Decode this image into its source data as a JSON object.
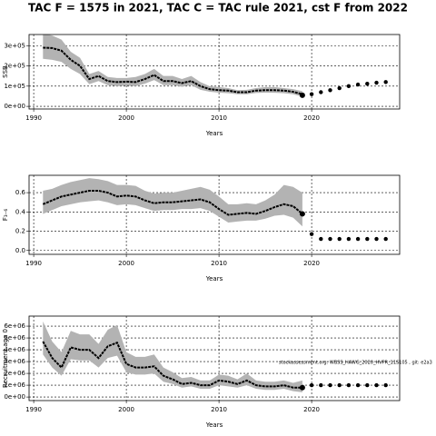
{
  "title": "TAC F = 1575 in 2021, TAC C = TAC rule 2021, cst F from 2022",
  "chart_data": [
    {
      "type": "line",
      "xlabel": "Years",
      "ylabel": "SSB",
      "grid": true,
      "line_color": "#000000",
      "band_color": "#b3b3b3",
      "point_color": "#000000",
      "xlim": [
        1989.5,
        2029.5
      ],
      "xticks": [
        1990,
        2000,
        2010,
        2020
      ],
      "ylim": [
        -13000,
        355000
      ],
      "yticks": [
        {
          "value": 0,
          "label": "0e+00"
        },
        {
          "value": 100000,
          "label": "1e+05"
        },
        {
          "value": 200000,
          "label": "2e+05"
        },
        {
          "value": 300000,
          "label": "3e+05"
        }
      ],
      "x": [
        1991,
        1992,
        1993,
        1994,
        1995,
        1996,
        1997,
        1998,
        1999,
        2000,
        2001,
        2002,
        2003,
        2004,
        2005,
        2006,
        2007,
        2008,
        2009,
        2010,
        2011,
        2012,
        2013,
        2014,
        2015,
        2016,
        2017,
        2018,
        2019
      ],
      "values": [
        290000,
        288000,
        275000,
        230000,
        200000,
        135000,
        150000,
        125000,
        120000,
        122000,
        120000,
        135000,
        155000,
        125000,
        125000,
        115000,
        125000,
        100000,
        85000,
        80000,
        78000,
        70000,
        70000,
        78000,
        80000,
        80000,
        78000,
        72000,
        60000
      ],
      "upper": [
        360000,
        350000,
        330000,
        270000,
        240000,
        160000,
        175000,
        145000,
        140000,
        140000,
        145000,
        160000,
        185000,
        150000,
        150000,
        135000,
        150000,
        120000,
        100000,
        95000,
        90000,
        80000,
        82000,
        90000,
        95000,
        95000,
        90000,
        85000,
        75000
      ],
      "lower": [
        235000,
        230000,
        220000,
        185000,
        160000,
        110000,
        125000,
        105000,
        100000,
        102000,
        100000,
        112000,
        130000,
        105000,
        105000,
        97000,
        105000,
        82000,
        72000,
        68000,
        65000,
        60000,
        60000,
        66000,
        68000,
        67000,
        65000,
        60000,
        48000
      ],
      "proj_x": [
        2019,
        2020,
        2021,
        2022,
        2023,
        2024,
        2025,
        2026,
        2027,
        2028
      ],
      "proj_values": [
        55000,
        60000,
        70000,
        80000,
        90000,
        100000,
        108000,
        112000,
        117000,
        120000
      ]
    },
    {
      "type": "line",
      "xlabel": "Years",
      "ylabel": "F₃₋₆",
      "grid": true,
      "line_color": "#000000",
      "band_color": "#b3b3b3",
      "point_color": "#000000",
      "xlim": [
        1989.5,
        2029.5
      ],
      "xticks": [
        1990,
        2000,
        2010,
        2020
      ],
      "ylim": [
        -0.04,
        0.78
      ],
      "yticks": [
        {
          "value": 0,
          "label": "0.0"
        },
        0.2,
        0.4,
        0.6
      ],
      "x": [
        1991,
        1992,
        1993,
        1994,
        1995,
        1996,
        1997,
        1998,
        1999,
        2000,
        2001,
        2002,
        2003,
        2004,
        2005,
        2006,
        2007,
        2008,
        2009,
        2010,
        2011,
        2012,
        2013,
        2014,
        2015,
        2016,
        2017,
        2018,
        2019
      ],
      "values": [
        0.48,
        0.52,
        0.56,
        0.58,
        0.6,
        0.62,
        0.62,
        0.6,
        0.56,
        0.57,
        0.56,
        0.52,
        0.49,
        0.5,
        0.5,
        0.51,
        0.52,
        0.53,
        0.5,
        0.43,
        0.37,
        0.38,
        0.39,
        0.38,
        0.41,
        0.45,
        0.48,
        0.46,
        0.38
      ],
      "upper": [
        0.62,
        0.64,
        0.68,
        0.71,
        0.73,
        0.75,
        0.74,
        0.72,
        0.68,
        0.68,
        0.67,
        0.62,
        0.59,
        0.6,
        0.6,
        0.62,
        0.64,
        0.66,
        0.63,
        0.56,
        0.48,
        0.48,
        0.49,
        0.48,
        0.52,
        0.58,
        0.68,
        0.66,
        0.6
      ],
      "lower": [
        0.38,
        0.42,
        0.46,
        0.48,
        0.5,
        0.51,
        0.52,
        0.5,
        0.47,
        0.48,
        0.47,
        0.44,
        0.41,
        0.42,
        0.42,
        0.43,
        0.43,
        0.44,
        0.41,
        0.35,
        0.29,
        0.3,
        0.31,
        0.31,
        0.33,
        0.36,
        0.37,
        0.34,
        0.25
      ],
      "proj_x": [
        2019,
        2020,
        2021,
        2022,
        2023,
        2024,
        2025,
        2026,
        2027,
        2028
      ],
      "proj_values": [
        0.38,
        0.17,
        0.12,
        0.12,
        0.12,
        0.12,
        0.12,
        0.12,
        0.12,
        0.12
      ]
    },
    {
      "type": "line",
      "xlabel": "Years",
      "ylabel": "Recruitment age 0",
      "grid": true,
      "line_color": "#000000",
      "band_color": "#b3b3b3",
      "point_color": "#000000",
      "annotation": "stockassessment.org: WBSS_HAWG_2020_HVPR_11S105 , git: e2a3",
      "xlim": [
        1989.5,
        2029.5
      ],
      "xticks": [
        1990,
        2000,
        2010,
        2020
      ],
      "ylim": [
        -300000,
        6850000
      ],
      "yticks": [
        {
          "value": 0,
          "label": "0e+00"
        },
        {
          "value": 1000000,
          "label": "1e+06"
        },
        {
          "value": 2000000,
          "label": "2e+06"
        },
        {
          "value": 3000000,
          "label": "3e+06"
        },
        {
          "value": 4000000,
          "label": "4e+06"
        },
        {
          "value": 5000000,
          "label": "5e+06"
        },
        {
          "value": 6000000,
          "label": "6e+06"
        }
      ],
      "x": [
        1991,
        1992,
        1993,
        1994,
        1995,
        1996,
        1997,
        1998,
        1999,
        2000,
        2001,
        2002,
        2003,
        2004,
        2005,
        2006,
        2007,
        2008,
        2009,
        2010,
        2011,
        2012,
        2013,
        2014,
        2015,
        2016,
        2017,
        2018,
        2019
      ],
      "values": [
        4700000,
        3300000,
        2500000,
        4200000,
        4000000,
        4000000,
        3300000,
        4300000,
        4600000,
        2800000,
        2500000,
        2500000,
        2600000,
        1800000,
        1500000,
        1100000,
        1200000,
        1000000,
        1000000,
        1400000,
        1300000,
        1100000,
        1400000,
        1000000,
        900000,
        900000,
        1000000,
        800000,
        800000
      ],
      "upper": [
        6400000,
        4700000,
        3800000,
        5600000,
        5300000,
        5300000,
        4500000,
        5700000,
        6100000,
        3800000,
        3400000,
        3400000,
        3600000,
        2500000,
        2100000,
        1600000,
        1700000,
        1400000,
        1400000,
        1900000,
        1800000,
        1500000,
        2000000,
        1400000,
        1300000,
        1300000,
        1400000,
        1200000,
        1400000
      ],
      "lower": [
        3600000,
        2500000,
        1800000,
        3200000,
        3100000,
        3100000,
        2500000,
        3300000,
        3500000,
        2100000,
        1900000,
        1900000,
        2000000,
        1300000,
        1100000,
        800000,
        900000,
        700000,
        700000,
        1000000,
        900000,
        800000,
        1000000,
        700000,
        600000,
        600000,
        700000,
        500000,
        400000
      ],
      "proj_x": [
        2019,
        2020,
        2021,
        2022,
        2023,
        2024,
        2025,
        2026,
        2027,
        2028
      ],
      "proj_values": [
        800000,
        1000000,
        1000000,
        1000000,
        1000000,
        1000000,
        1000000,
        1000000,
        1000000,
        1000000
      ]
    }
  ]
}
